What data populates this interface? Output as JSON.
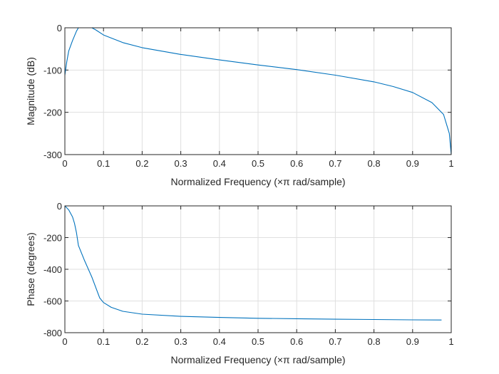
{
  "chart_data": [
    {
      "type": "line",
      "xlabel": "Normalized Frequency  (×π rad/sample)",
      "ylabel": "Magnitude (dB)",
      "xlim": [
        0,
        1
      ],
      "ylim": [
        -300,
        0
      ],
      "xticks": [
        0,
        0.1,
        0.2,
        0.3,
        0.4,
        0.5,
        0.6,
        0.7,
        0.8,
        0.9,
        1
      ],
      "xtick_labels": [
        "0",
        "0.1",
        "0.2",
        "0.3",
        "0.4",
        "0.5",
        "0.6",
        "0.7",
        "0.8",
        "0.9",
        "1"
      ],
      "yticks": [
        -300,
        -200,
        -100,
        0
      ],
      "ytick_labels": [
        "-300",
        "-200",
        "-100",
        "0"
      ],
      "grid": true,
      "color": "#0072BD",
      "x": [
        0,
        0.005,
        0.01,
        0.02,
        0.03,
        0.035,
        0.05,
        0.07,
        0.08,
        0.1,
        0.15,
        0.2,
        0.3,
        0.4,
        0.5,
        0.6,
        0.7,
        0.8,
        0.85,
        0.9,
        0.95,
        0.98,
        0.995,
        1
      ],
      "y": [
        -112,
        -80,
        -55,
        -30,
        -8,
        0,
        0,
        0,
        -5,
        -17,
        -35,
        -47,
        -63,
        -76,
        -88,
        -99,
        -112,
        -128,
        -139,
        -153,
        -177,
        -205,
        -250,
        -300
      ]
    },
    {
      "type": "line",
      "xlabel": "Normalized Frequency  (×π rad/sample)",
      "ylabel": "Phase (degrees)",
      "xlim": [
        0,
        1
      ],
      "ylim": [
        -800,
        0
      ],
      "xticks": [
        0,
        0.1,
        0.2,
        0.3,
        0.4,
        0.5,
        0.6,
        0.7,
        0.8,
        0.9,
        1
      ],
      "xtick_labels": [
        "0",
        "0.1",
        "0.2",
        "0.3",
        "0.4",
        "0.5",
        "0.6",
        "0.7",
        "0.8",
        "0.9",
        "1"
      ],
      "yticks": [
        -800,
        -600,
        -400,
        -200,
        0
      ],
      "ytick_labels": [
        "-800",
        "-600",
        "-400",
        "-200",
        "0"
      ],
      "grid": true,
      "color": "#0072BD",
      "x": [
        0,
        0.01,
        0.02,
        0.025,
        0.03,
        0.035,
        0.05,
        0.07,
        0.09,
        0.1,
        0.12,
        0.15,
        0.2,
        0.3,
        0.4,
        0.5,
        0.6,
        0.7,
        0.8,
        0.9,
        0.975
      ],
      "y": [
        0,
        -25,
        -70,
        -110,
        -170,
        -250,
        -340,
        -450,
        -580,
        -610,
        -640,
        -665,
        -683,
        -697,
        -704,
        -709,
        -712,
        -715,
        -717,
        -719,
        -720
      ]
    }
  ]
}
